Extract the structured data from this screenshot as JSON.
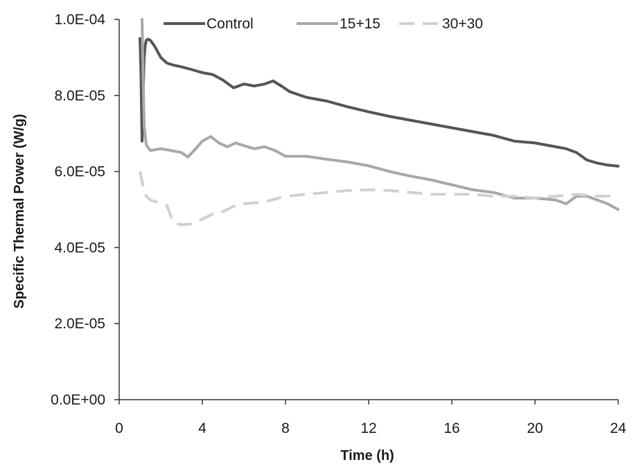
{
  "chart_data": {
    "type": "line",
    "xlabel": "Time (h)",
    "ylabel": "Specific Thermal Power (W/g)",
    "xlim": [
      0,
      24
    ],
    "ylim": [
      0,
      0.0001
    ],
    "xticks": [
      0,
      4,
      8,
      12,
      16,
      20,
      24
    ],
    "xtick_labels": [
      "0",
      "4",
      "8",
      "12",
      "16",
      "20",
      "24"
    ],
    "yticks": [
      0,
      2e-05,
      4e-05,
      6e-05,
      8e-05,
      0.0001
    ],
    "ytick_labels": [
      "0.0E+00",
      "2.0E-05",
      "4.0E-05",
      "6.0E-05",
      "8.0E-05",
      "1.0E-04"
    ],
    "grid": false,
    "legend_position": "top",
    "series": [
      {
        "name": "Control",
        "color": "#555555",
        "dash": "solid",
        "x": [
          1.0,
          1.05,
          1.1,
          1.15,
          1.2,
          1.25,
          1.3,
          1.4,
          1.5,
          1.7,
          2.0,
          2.3,
          2.6,
          3.0,
          3.5,
          4.0,
          4.5,
          5.0,
          5.5,
          6.0,
          6.5,
          7.0,
          7.4,
          7.8,
          8.2,
          9.0,
          10.0,
          11.0,
          12.0,
          13.0,
          14.0,
          15.0,
          16.0,
          17.0,
          18.0,
          19.0,
          20.0,
          21.0,
          21.5,
          22.0,
          22.5,
          23.0,
          23.5,
          24.0
        ],
        "y": [
          9.5e-05,
          8.5e-05,
          6.8e-05,
          8e-05,
          9e-05,
          9.3e-05,
          9.45e-05,
          9.48e-05,
          9.45e-05,
          9.3e-05,
          9e-05,
          8.85e-05,
          8.8e-05,
          8.75e-05,
          8.68e-05,
          8.6e-05,
          8.55e-05,
          8.4e-05,
          8.2e-05,
          8.3e-05,
          8.25e-05,
          8.3e-05,
          8.38e-05,
          8.25e-05,
          8.1e-05,
          7.95e-05,
          7.85e-05,
          7.7e-05,
          7.57e-05,
          7.45e-05,
          7.35e-05,
          7.25e-05,
          7.15e-05,
          7.05e-05,
          6.95e-05,
          6.8e-05,
          6.75e-05,
          6.65e-05,
          6.6e-05,
          6.5e-05,
          6.3e-05,
          6.22e-05,
          6.17e-05,
          6.14e-05
        ]
      },
      {
        "name": "15+15",
        "color": "#a8a8a8",
        "dash": "solid",
        "x": [
          1.1,
          1.15,
          1.2,
          1.3,
          1.5,
          2.0,
          2.5,
          3.0,
          3.3,
          3.6,
          4.0,
          4.4,
          4.8,
          5.2,
          5.6,
          6.0,
          6.5,
          7.0,
          7.5,
          8.0,
          9.0,
          10.0,
          11.0,
          12.0,
          13.0,
          14.0,
          15.0,
          16.0,
          17.0,
          18.0,
          19.0,
          20.0,
          21.0,
          21.5,
          22.0,
          22.5,
          23.0,
          23.5,
          24.0
        ],
        "y": [
          0.0001,
          8.5e-05,
          7.2e-05,
          6.7e-05,
          6.55e-05,
          6.6e-05,
          6.55e-05,
          6.5e-05,
          6.38e-05,
          6.55e-05,
          6.8e-05,
          6.92e-05,
          6.75e-05,
          6.65e-05,
          6.75e-05,
          6.68e-05,
          6.6e-05,
          6.65e-05,
          6.55e-05,
          6.4e-05,
          6.4e-05,
          6.32e-05,
          6.25e-05,
          6.15e-05,
          6e-05,
          5.88e-05,
          5.78e-05,
          5.65e-05,
          5.52e-05,
          5.45e-05,
          5.3e-05,
          5.3e-05,
          5.25e-05,
          5.15e-05,
          5.35e-05,
          5.35e-05,
          5.25e-05,
          5.15e-05,
          5e-05
        ]
      },
      {
        "name": "30+30",
        "color": "#d0d0d0",
        "dash": "dashed",
        "x": [
          1.0,
          1.1,
          1.2,
          1.3,
          1.5,
          1.8,
          2.0,
          2.3,
          2.6,
          3.0,
          3.5,
          4.0,
          4.5,
          5.0,
          5.5,
          6.0,
          7.0,
          8.0,
          9.0,
          10.0,
          11.0,
          12.0,
          13.0,
          14.0,
          15.0,
          16.0,
          17.0,
          18.0,
          19.0,
          20.0,
          21.0,
          22.0,
          23.0,
          24.0
        ],
        "y": [
          6e-05,
          5.75e-05,
          5.5e-05,
          5.35e-05,
          5.25e-05,
          5.2e-05,
          5.15e-05,
          5.1e-05,
          4.65e-05,
          4.6e-05,
          4.62e-05,
          4.75e-05,
          4.88e-05,
          4.95e-05,
          5.08e-05,
          5.15e-05,
          5.2e-05,
          5.35e-05,
          5.4e-05,
          5.45e-05,
          5.5e-05,
          5.52e-05,
          5.5e-05,
          5.45e-05,
          5.4e-05,
          5.4e-05,
          5.4e-05,
          5.35e-05,
          5.35e-05,
          5.3e-05,
          5.35e-05,
          5.4e-05,
          5.35e-05,
          5.35e-05
        ]
      }
    ]
  }
}
